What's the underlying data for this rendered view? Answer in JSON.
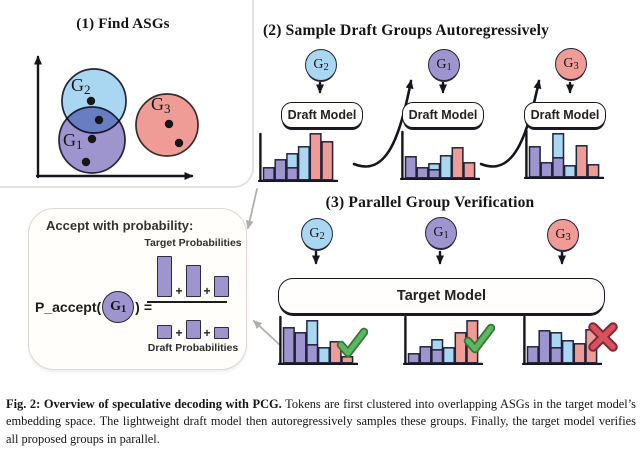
{
  "colors": {
    "blue": "#a9d6f0",
    "purple": "#9e95cf",
    "red": "#ee9c95",
    "outline": "#23253c",
    "check_green": "#5cb85f",
    "check_green_dark": "#38763c",
    "cross_red": "#d9505f",
    "cross_red_dark": "#7c2a35",
    "arrow_gray": "#b3b0ab"
  },
  "panel1": {
    "title": "(1) Find ASGs",
    "groups": [
      {
        "base": "G",
        "sub": "2",
        "color": "blue"
      },
      {
        "base": "G",
        "sub": "1",
        "color": "purple"
      },
      {
        "base": "G",
        "sub": "3",
        "color": "red"
      }
    ]
  },
  "panel2": {
    "title": "(2) Sample Draft Groups Autoregressively",
    "model_label": "Draft Model",
    "units": [
      {
        "group": {
          "base": "G",
          "sub": "2",
          "color": "blue"
        },
        "chart": {
          "bars": [
            [
              [
                "purple",
                12
              ]
            ],
            [
              [
                "purple",
                20
              ]
            ],
            [
              [
                "purple",
                12
              ],
              [
                "blue",
                14
              ]
            ],
            [
              [
                "blue",
                33
              ]
            ],
            [
              [
                "red",
                46
              ]
            ],
            [
              [
                "red",
                38
              ]
            ]
          ]
        }
      },
      {
        "group": {
          "base": "G",
          "sub": "1",
          "color": "purple"
        },
        "chart": {
          "bars": [
            [
              [
                "purple",
                21
              ]
            ],
            [
              [
                "purple",
                10
              ]
            ],
            [
              [
                "purple",
                8
              ],
              [
                "blue",
                6
              ]
            ],
            [
              [
                "blue",
                22
              ]
            ],
            [
              [
                "red",
                30
              ]
            ],
            [
              [
                "red",
                15
              ]
            ]
          ]
        }
      },
      {
        "group": {
          "base": "G",
          "sub": "3",
          "color": "red"
        },
        "chart": {
          "bars": [
            [
              [
                "purple",
                30
              ]
            ],
            [
              [
                "purple",
                14
              ]
            ],
            [
              [
                "purple",
                19
              ],
              [
                "blue",
                24
              ]
            ],
            [
              [
                "blue",
                11
              ]
            ],
            [
              [
                "red",
                31
              ]
            ],
            [
              [
                "red",
                12
              ]
            ]
          ]
        }
      }
    ]
  },
  "panel3": {
    "title": "(3) Parallel Group Verification",
    "model_label": "Target Model",
    "units": [
      {
        "group": {
          "base": "G",
          "sub": "2",
          "color": "blue"
        },
        "chart": {
          "bars": [
            [
              [
                "purple",
                35
              ]
            ],
            [
              [
                "purple",
                30
              ]
            ],
            [
              [
                "purple",
                18
              ],
              [
                "blue",
                24
              ]
            ],
            [
              [
                "blue",
                15
              ]
            ],
            [
              [
                "red",
                21
              ]
            ],
            [
              [
                "red",
                6
              ]
            ]
          ]
        },
        "result": "check"
      },
      {
        "group": {
          "base": "G",
          "sub": "1",
          "color": "purple"
        },
        "chart": {
          "bars": [
            [
              [
                "purple",
                9
              ]
            ],
            [
              [
                "purple",
                16
              ]
            ],
            [
              [
                "purple",
                13
              ],
              [
                "blue",
                10
              ]
            ],
            [
              [
                "blue",
                15
              ]
            ],
            [
              [
                "red",
                30
              ]
            ],
            [
              [
                "red",
                42
              ]
            ]
          ]
        },
        "result": "check"
      },
      {
        "group": {
          "base": "G",
          "sub": "3",
          "color": "red"
        },
        "chart": {
          "bars": [
            [
              [
                "purple",
                16
              ]
            ],
            [
              [
                "purple",
                32
              ]
            ],
            [
              [
                "purple",
                15
              ],
              [
                "blue",
                15
              ]
            ],
            [
              [
                "blue",
                22
              ]
            ],
            [
              [
                "red",
                19
              ]
            ],
            [
              [
                "red",
                33
              ]
            ]
          ]
        },
        "result": "cross"
      }
    ]
  },
  "accept_box": {
    "title": "Accept with probability:",
    "numerator_label": "Target Probabilities",
    "denominator_label": "Draft Probabilities",
    "lhs": "P_accept(",
    "rhs_paren": ")",
    "equals": "=",
    "plus": "+",
    "group": {
      "base": "G",
      "sub": "1",
      "color": "purple"
    },
    "numerator_bars": [
      39,
      30,
      19
    ],
    "denominator_bars": [
      12,
      17,
      10
    ]
  },
  "caption": {
    "bold": "Fig. 2: Overview of speculative decoding with PCG.",
    "body": " Tokens are first clustered into overlapping ASGs in the target model’s embedding space. The lightweight draft model then autoregressively samples these groups. Finally, the target model verifies all proposed groups in parallel."
  }
}
